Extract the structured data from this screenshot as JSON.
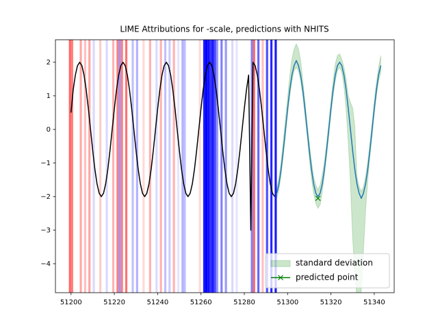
{
  "chart_data": {
    "type": "line",
    "title": "LIME Attributions for -scale, predictions with NHITS",
    "xlim": [
      51192.8,
      51349.2
    ],
    "ylim": [
      -4.86,
      2.67
    ],
    "xticks": [
      51200,
      51220,
      51240,
      51260,
      51280,
      51300,
      51320,
      51340
    ],
    "yticks": [
      {
        "value": -4,
        "label": "−4"
      },
      {
        "value": -3,
        "label": "−3"
      },
      {
        "value": -2,
        "label": "−2"
      },
      {
        "value": -1,
        "label": "−1"
      },
      0,
      1,
      2
    ],
    "legend": "lower right",
    "attributions": {
      "positive_color": "#ff0000",
      "negative_color": "#0000ff",
      "x": [
        51199,
        51200,
        51204,
        51206,
        51208,
        51210,
        51213,
        51216,
        51219,
        51221,
        51222,
        51223,
        51225,
        51228,
        51230,
        51233,
        51236,
        51239,
        51241,
        51243,
        51245,
        51247,
        51249,
        51251,
        51252,
        51259,
        51261,
        51262,
        51263,
        51264,
        51265,
        51266,
        51267,
        51269,
        51271,
        51274,
        51276,
        51283,
        51284,
        51286,
        51288,
        51290,
        51292,
        51294
      ],
      "values": [
        0.6,
        0.5,
        0.35,
        0.25,
        0.35,
        -0.15,
        0.2,
        -0.15,
        0.3,
        0.5,
        -0.4,
        0.5,
        0.55,
        -0.25,
        -0.3,
        0.15,
        0.3,
        -0.15,
        0.3,
        -0.25,
        -0.2,
        0.3,
        -0.1,
        -0.3,
        -0.25,
        0.15,
        -0.9,
        -1,
        -0.95,
        -0.8,
        -0.9,
        -0.7,
        -0.4,
        -0.5,
        -0.4,
        -0.15,
        -0.1,
        -0.5,
        0.6,
        -0.6,
        0.25,
        -0.7,
        -0.85,
        -0.9
      ]
    },
    "series": [
      {
        "color": "#000000",
        "x": [
          51200,
          51201,
          51202,
          51203,
          51204,
          51205,
          51206,
          51207,
          51208,
          51209,
          51210,
          51211,
          51212,
          51213,
          51214,
          51215,
          51216,
          51217,
          51218,
          51219,
          51220,
          51221,
          51222,
          51223,
          51224,
          51225,
          51226,
          51227,
          51228,
          51229,
          51230,
          51231,
          51232,
          51233,
          51234,
          51235,
          51236,
          51237,
          51238,
          51239,
          51240,
          51241,
          51242,
          51243,
          51244,
          51245,
          51246,
          51247,
          51248,
          51249,
          51250,
          51251,
          51252,
          51253,
          51254,
          51255,
          51256,
          51257,
          51258,
          51259,
          51260,
          51261,
          51262,
          51263,
          51264,
          51265,
          51266,
          51267,
          51268,
          51269,
          51270,
          51271,
          51272,
          51273,
          51274,
          51275,
          51276,
          51277,
          51278,
          51279,
          51280,
          51281,
          51282,
          51283,
          51284,
          51285,
          51286,
          51287,
          51288,
          51289,
          51290,
          51291,
          51292,
          51293,
          51294
        ],
        "values": [
          0.5,
          1.18,
          1.62,
          1.9,
          2,
          1.9,
          1.62,
          1.18,
          0.62,
          0,
          -0.62,
          -1.18,
          -1.62,
          -1.9,
          -2,
          -1.9,
          -1.62,
          -1.18,
          -0.62,
          0,
          0.62,
          1.18,
          1.62,
          1.9,
          2,
          1.9,
          1.62,
          1.18,
          0.62,
          0,
          -0.62,
          -1.18,
          -1.62,
          -1.9,
          -2,
          -1.9,
          -1.62,
          -1.18,
          -0.62,
          0,
          0.62,
          1.18,
          1.62,
          1.9,
          2,
          1.9,
          1.62,
          1.18,
          0.62,
          0,
          -0.62,
          -1.18,
          -1.62,
          -1.9,
          -2,
          -1.9,
          -1.62,
          -1.18,
          -0.62,
          0,
          0.62,
          1.18,
          1.62,
          1.9,
          2,
          1.9,
          1.62,
          1.18,
          0.62,
          0,
          -0.62,
          -1.18,
          -1.62,
          -1.9,
          -2,
          -1.9,
          -1.62,
          -1.18,
          -0.62,
          0,
          0.62,
          1.18,
          1.62,
          -3,
          2,
          1.9,
          1.62,
          1.18,
          0.62,
          0,
          -0.62,
          -1.18,
          -1.62,
          -1.9,
          -2
        ]
      },
      {
        "color": "#1f77b4",
        "x": [
          51295,
          51296,
          51297,
          51298,
          51299,
          51300,
          51301,
          51302,
          51303,
          51304,
          51305,
          51306,
          51307,
          51308,
          51309,
          51310,
          51311,
          51312,
          51313,
          51314,
          51315,
          51316,
          51317,
          51318,
          51319,
          51320,
          51321,
          51322,
          51323,
          51324,
          51325,
          51326,
          51327,
          51328,
          51329,
          51330,
          51331,
          51332,
          51333,
          51334,
          51335,
          51336,
          51337,
          51338,
          51339,
          51340,
          51341,
          51342,
          51343
        ],
        "values": [
          -1.9,
          -1.62,
          -1.18,
          -0.62,
          0,
          0.62,
          1.18,
          1.62,
          1.9,
          2.05,
          1.9,
          1.62,
          1.18,
          0.62,
          0,
          -0.62,
          -1.18,
          -1.62,
          -1.9,
          -2,
          -1.9,
          -1.62,
          -1.18,
          -0.62,
          0,
          0.62,
          1.18,
          1.62,
          1.9,
          2,
          1.9,
          1.62,
          1.18,
          0.62,
          0,
          -0.62,
          -1.18,
          -1.62,
          -1.9,
          -2.05,
          -1.9,
          -1.62,
          -1.18,
          -0.62,
          0,
          0.62,
          1.18,
          1.62,
          1.9
        ],
        "band": {
          "name": "standard deviation",
          "color": "#008000",
          "lower": [
            -2.05,
            -1.8,
            -1.35,
            -0.8,
            -0.2,
            0.45,
            1.0,
            1.45,
            1.75,
            1.85,
            1.75,
            1.45,
            1.0,
            0.4,
            -0.2,
            -0.85,
            -1.45,
            -1.9,
            -2.2,
            -2.35,
            -2.25,
            -1.85,
            -1.35,
            -0.8,
            -0.2,
            0.45,
            1.0,
            1.45,
            1.75,
            1.85,
            1.7,
            1.3,
            0.6,
            -0.4,
            -1.6,
            -3.2,
            -4.3,
            -5.0,
            -5.2,
            -4.8,
            -3.6,
            -2.4,
            -1.5,
            -0.8,
            -0.2,
            0.45,
            1.0,
            1.45,
            1.7
          ],
          "upper": [
            -1.75,
            -1.45,
            -0.95,
            -0.35,
            0.3,
            0.95,
            1.6,
            2.1,
            2.4,
            2.55,
            2.4,
            2.05,
            1.45,
            0.85,
            0.2,
            -0.4,
            -0.95,
            -1.4,
            -1.65,
            -1.8,
            -1.65,
            -1.35,
            -0.95,
            -0.4,
            0.2,
            0.85,
            1.45,
            1.95,
            2.2,
            2.25,
            2.1,
            1.85,
            1.5,
            1.0,
            0.8,
            0.65,
            0.1,
            -1.4,
            -1.7,
            -1.85,
            -1.7,
            -1.4,
            -0.95,
            -0.4,
            0.2,
            0.85,
            1.4,
            1.85,
            2.2
          ]
        }
      }
    ],
    "points": [
      {
        "name": "predicted point",
        "color": "#008000",
        "x": 51314,
        "y": -2.05
      }
    ]
  }
}
